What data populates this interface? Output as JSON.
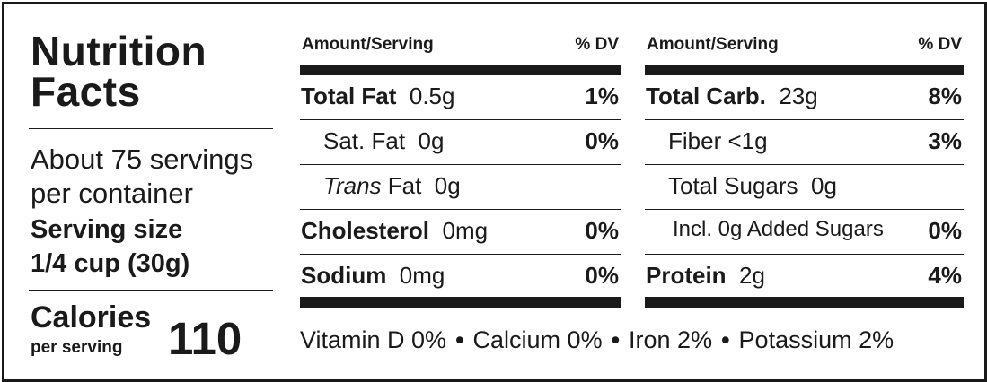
{
  "title_line1": "Nutrition",
  "title_line2": "Facts",
  "servings_line1": "About 75 servings",
  "servings_line2": "per container",
  "serving_size_label": "Serving size",
  "serving_size_value": "1/4 cup (30g)",
  "calories_label": "Calories",
  "calories_sub": "per serving",
  "calories_value": "110",
  "header_amount": "Amount/Serving",
  "header_dv": "% DV",
  "left_column": [
    {
      "name": "Total Fat",
      "amount": "0.5g",
      "dv": "1%",
      "bold": true
    },
    {
      "name": "Sat. Fat",
      "amount": "0g",
      "dv": "0%",
      "bold": false
    },
    {
      "name": "Trans",
      "name_suffix": "Fat",
      "amount": "0g",
      "dv": "",
      "bold": false
    },
    {
      "name": "Cholesterol",
      "amount": "0mg",
      "dv": "0%",
      "bold": true
    },
    {
      "name": "Sodium",
      "amount": "0mg",
      "dv": "0%",
      "bold": true
    }
  ],
  "right_column": [
    {
      "name": "Total Carb.",
      "amount": "23g",
      "dv": "8%",
      "bold": true
    },
    {
      "name": "Fiber",
      "amount": "<1g",
      "dv": "3%",
      "bold": false
    },
    {
      "name": "Total Sugars",
      "amount": "0g",
      "dv": "",
      "bold": false
    },
    {
      "name": "Incl. 0g Added Sugars",
      "amount": "",
      "dv": "0%",
      "bold": false
    },
    {
      "name": "Protein",
      "amount": "2g",
      "dv": "4%",
      "bold": true
    }
  ],
  "vitamins": [
    "Vitamin D 0%",
    "Calcium 0%",
    "Iron 2%",
    "Potassium 2%"
  ],
  "vitamin_separator": "•"
}
